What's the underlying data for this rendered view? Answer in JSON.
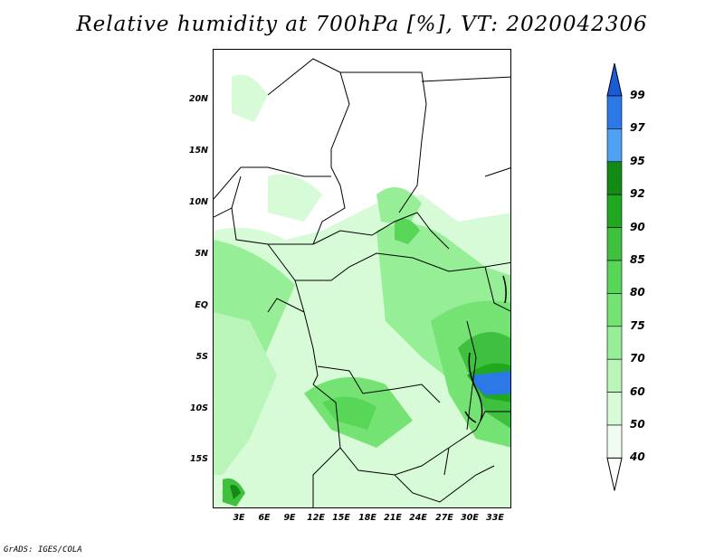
{
  "title": "Relative humidity at 700hPa [%], VT: 2020042306",
  "credit": "GrADS: IGES/COLA",
  "lat_labels": [
    "20N",
    "15N",
    "10N",
    "5N",
    "EQ",
    "5S",
    "10S",
    "15S"
  ],
  "lon_labels": [
    "3E",
    "6E",
    "9E",
    "12E",
    "15E",
    "18E",
    "21E",
    "24E",
    "27E",
    "30E",
    "33E"
  ],
  "colorbar": {
    "levels": [
      "99",
      "97",
      "95",
      "92",
      "90",
      "85",
      "80",
      "75",
      "70",
      "60",
      "50",
      "40"
    ],
    "colors": [
      "#1c5bd6",
      "#2b78e6",
      "#4fa0f0",
      "#138a13",
      "#21a821",
      "#3fc13f",
      "#57d657",
      "#74e374",
      "#96ee96",
      "#b9f5b9",
      "#d7fad7",
      "#effcef"
    ]
  },
  "map_colors": {
    "light": "#d7fad7",
    "mid": "#96ee96",
    "strong": "#57d657",
    "dark": "#21a821",
    "blue": "#2b78e6",
    "white": "#ffffff"
  }
}
